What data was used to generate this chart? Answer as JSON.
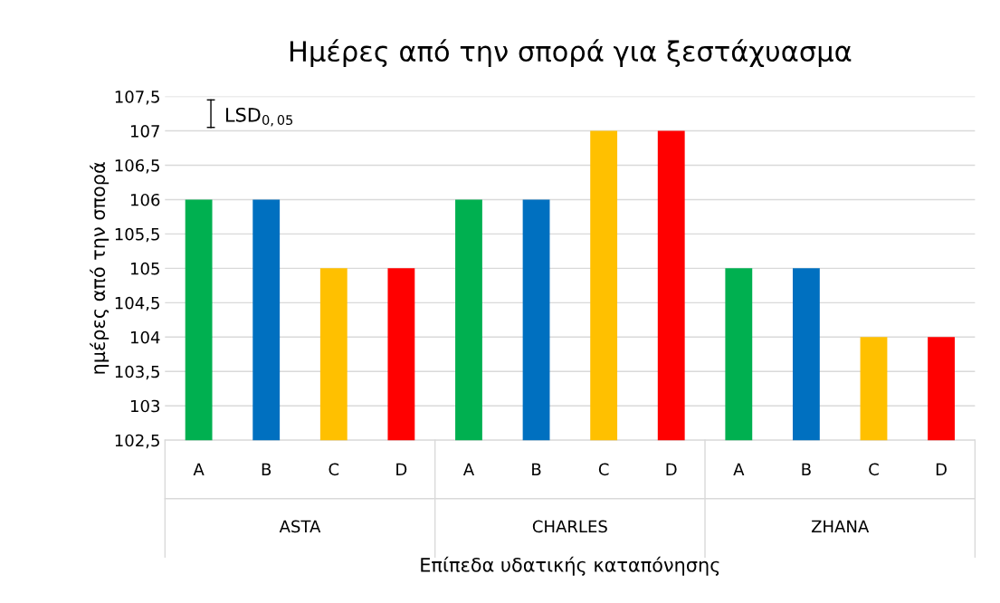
{
  "chart_data": {
    "type": "bar",
    "title": "Ημέρες από την σπορά για ξεστάχυασμα",
    "xlabel": "Επίπεδα υδατικής καταπόνησης",
    "ylabel": "ημέρες από την σπορά",
    "categories": [
      "A",
      "B",
      "C",
      "D",
      "A",
      "B",
      "C",
      "D",
      "A",
      "B",
      "C",
      "D"
    ],
    "values": [
      106,
      106,
      105,
      105,
      106,
      106,
      107,
      107,
      105,
      105,
      104,
      104
    ],
    "colors": [
      "#00b050",
      "#0070c0",
      "#ffc000",
      "#ff0000",
      "#00b050",
      "#0070c0",
      "#ffc000",
      "#ff0000",
      "#00b050",
      "#0070c0",
      "#ffc000",
      "#ff0000"
    ],
    "ylim": [
      102.5,
      107.5
    ],
    "yticks": [
      {
        "value": 102.5,
        "label": "102,5"
      },
      {
        "value": 103,
        "label": "103"
      },
      {
        "value": 103.5,
        "label": "103,5"
      },
      {
        "value": 104,
        "label": "104"
      },
      {
        "value": 104.5,
        "label": "104,5"
      },
      {
        "value": 105,
        "label": "105"
      },
      {
        "value": 105.5,
        "label": "105,5"
      },
      {
        "value": 106,
        "label": "106"
      },
      {
        "value": 106.5,
        "label": "106,5"
      },
      {
        "value": 107,
        "label": "107"
      },
      {
        "value": 107.5,
        "label": "107,5"
      }
    ],
    "grid": "y",
    "annotations": [
      "LSD$_{0,05}$",
      "ASTA",
      "CHARLES",
      "ZHANA"
    ]
  }
}
